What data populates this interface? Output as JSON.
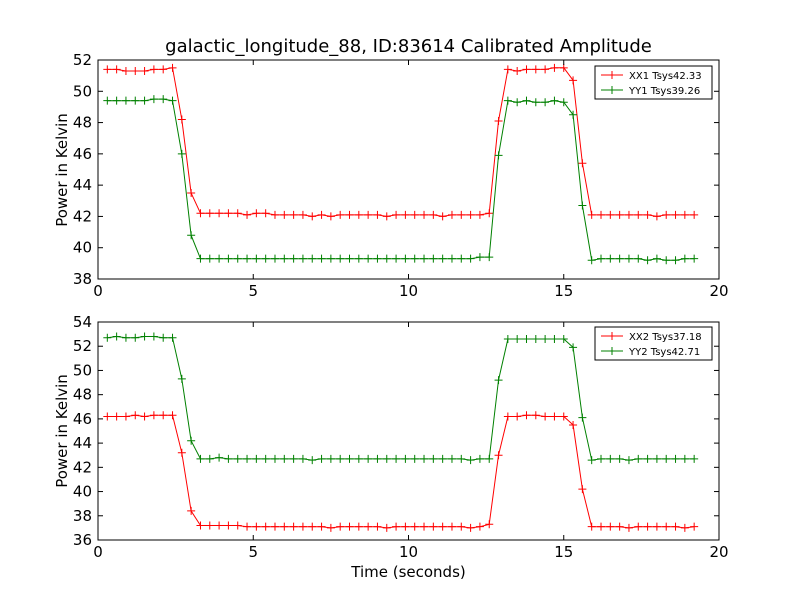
{
  "chart_data": [
    {
      "type": "line",
      "title": "galactic_longitude_88, ID:83614 Calibrated Amplitude",
      "xlabel": "",
      "ylabel": "Power in Kelvin",
      "xlim": [
        0,
        20
      ],
      "ylim": [
        38,
        52
      ],
      "xticks": [
        "0",
        "5",
        "10",
        "15",
        "20"
      ],
      "yticks": [
        "38",
        "40",
        "42",
        "44",
        "46",
        "48",
        "50",
        "52"
      ],
      "legend_position": "top-right",
      "grid": false,
      "x": [
        0.3,
        0.6,
        0.9,
        1.2,
        1.5,
        1.8,
        2.1,
        2.4,
        2.7,
        3.0,
        3.3,
        3.6,
        3.9,
        4.2,
        4.5,
        4.8,
        5.1,
        5.4,
        5.7,
        6.0,
        6.3,
        6.6,
        6.9,
        7.2,
        7.5,
        7.8,
        8.1,
        8.4,
        8.7,
        9.0,
        9.3,
        9.6,
        9.9,
        10.2,
        10.5,
        10.8,
        11.1,
        11.4,
        11.7,
        12.0,
        12.3,
        12.6,
        12.9,
        13.2,
        13.5,
        13.8,
        14.1,
        14.4,
        14.7,
        15.0,
        15.3,
        15.6,
        15.9,
        16.2,
        16.5,
        16.8,
        17.1,
        17.4,
        17.7,
        18.0,
        18.3,
        18.6,
        18.9,
        19.2
      ],
      "series": [
        {
          "name": "XX1 Tsys42.33",
          "color": "#ff0000",
          "values": [
            51.4,
            51.4,
            51.3,
            51.3,
            51.3,
            51.4,
            51.4,
            51.5,
            48.2,
            43.5,
            42.2,
            42.2,
            42.2,
            42.2,
            42.2,
            42.1,
            42.2,
            42.2,
            42.1,
            42.1,
            42.1,
            42.1,
            42.0,
            42.1,
            42.0,
            42.1,
            42.1,
            42.1,
            42.1,
            42.1,
            42.0,
            42.1,
            42.1,
            42.1,
            42.1,
            42.1,
            42.0,
            42.1,
            42.1,
            42.1,
            42.1,
            42.2,
            48.1,
            51.4,
            51.3,
            51.4,
            51.4,
            51.4,
            51.5,
            51.5,
            50.7,
            45.4,
            42.1,
            42.1,
            42.1,
            42.1,
            42.1,
            42.1,
            42.1,
            42.0,
            42.1,
            42.1,
            42.1,
            42.1
          ]
        },
        {
          "name": "YY1 Tsys39.26",
          "color": "#008000",
          "values": [
            49.4,
            49.4,
            49.4,
            49.4,
            49.4,
            49.5,
            49.5,
            49.4,
            46.0,
            40.8,
            39.3,
            39.3,
            39.3,
            39.3,
            39.3,
            39.3,
            39.3,
            39.3,
            39.3,
            39.3,
            39.3,
            39.3,
            39.3,
            39.3,
            39.3,
            39.3,
            39.3,
            39.3,
            39.3,
            39.3,
            39.3,
            39.3,
            39.3,
            39.3,
            39.3,
            39.3,
            39.3,
            39.3,
            39.3,
            39.3,
            39.4,
            39.4,
            45.9,
            49.4,
            49.3,
            49.4,
            49.3,
            49.3,
            49.4,
            49.3,
            48.5,
            42.7,
            39.2,
            39.3,
            39.3,
            39.3,
            39.3,
            39.3,
            39.2,
            39.3,
            39.2,
            39.2,
            39.3,
            39.3
          ]
        }
      ]
    },
    {
      "type": "line",
      "title": "",
      "xlabel": "Time (seconds)",
      "ylabel": "Power in Kelvin",
      "xlim": [
        0,
        20
      ],
      "ylim": [
        36,
        54
      ],
      "xticks": [
        "0",
        "5",
        "10",
        "15",
        "20"
      ],
      "yticks": [
        "36",
        "38",
        "40",
        "42",
        "44",
        "46",
        "48",
        "50",
        "52",
        "54"
      ],
      "legend_position": "top-right",
      "grid": false,
      "x": [
        0.3,
        0.6,
        0.9,
        1.2,
        1.5,
        1.8,
        2.1,
        2.4,
        2.7,
        3.0,
        3.3,
        3.6,
        3.9,
        4.2,
        4.5,
        4.8,
        5.1,
        5.4,
        5.7,
        6.0,
        6.3,
        6.6,
        6.9,
        7.2,
        7.5,
        7.8,
        8.1,
        8.4,
        8.7,
        9.0,
        9.3,
        9.6,
        9.9,
        10.2,
        10.5,
        10.8,
        11.1,
        11.4,
        11.7,
        12.0,
        12.3,
        12.6,
        12.9,
        13.2,
        13.5,
        13.8,
        14.1,
        14.4,
        14.7,
        15.0,
        15.3,
        15.6,
        15.9,
        16.2,
        16.5,
        16.8,
        17.1,
        17.4,
        17.7,
        18.0,
        18.3,
        18.6,
        18.9,
        19.2
      ],
      "series": [
        {
          "name": "XX2 Tsys37.18",
          "color": "#ff0000",
          "values": [
            46.2,
            46.2,
            46.2,
            46.3,
            46.2,
            46.3,
            46.3,
            46.3,
            43.2,
            38.4,
            37.2,
            37.2,
            37.2,
            37.2,
            37.2,
            37.1,
            37.1,
            37.1,
            37.1,
            37.1,
            37.1,
            37.1,
            37.1,
            37.1,
            37.0,
            37.1,
            37.1,
            37.1,
            37.1,
            37.1,
            37.0,
            37.1,
            37.1,
            37.1,
            37.1,
            37.1,
            37.1,
            37.1,
            37.1,
            37.0,
            37.1,
            37.3,
            43.0,
            46.2,
            46.2,
            46.3,
            46.3,
            46.2,
            46.2,
            46.2,
            45.5,
            40.2,
            37.1,
            37.1,
            37.1,
            37.1,
            37.0,
            37.1,
            37.1,
            37.1,
            37.1,
            37.1,
            37.0,
            37.1
          ]
        },
        {
          "name": "YY2 Tsys42.71",
          "color": "#008000",
          "values": [
            52.7,
            52.8,
            52.7,
            52.7,
            52.8,
            52.8,
            52.7,
            52.7,
            49.3,
            44.2,
            42.7,
            42.7,
            42.8,
            42.7,
            42.7,
            42.7,
            42.7,
            42.7,
            42.7,
            42.7,
            42.7,
            42.7,
            42.6,
            42.7,
            42.7,
            42.7,
            42.7,
            42.7,
            42.7,
            42.7,
            42.7,
            42.7,
            42.7,
            42.7,
            42.7,
            42.7,
            42.7,
            42.7,
            42.7,
            42.6,
            42.7,
            42.7,
            49.2,
            52.6,
            52.6,
            52.6,
            52.6,
            52.6,
            52.6,
            52.6,
            51.9,
            46.1,
            42.6,
            42.7,
            42.7,
            42.7,
            42.6,
            42.7,
            42.7,
            42.7,
            42.7,
            42.7,
            42.7,
            42.7
          ]
        }
      ]
    }
  ]
}
